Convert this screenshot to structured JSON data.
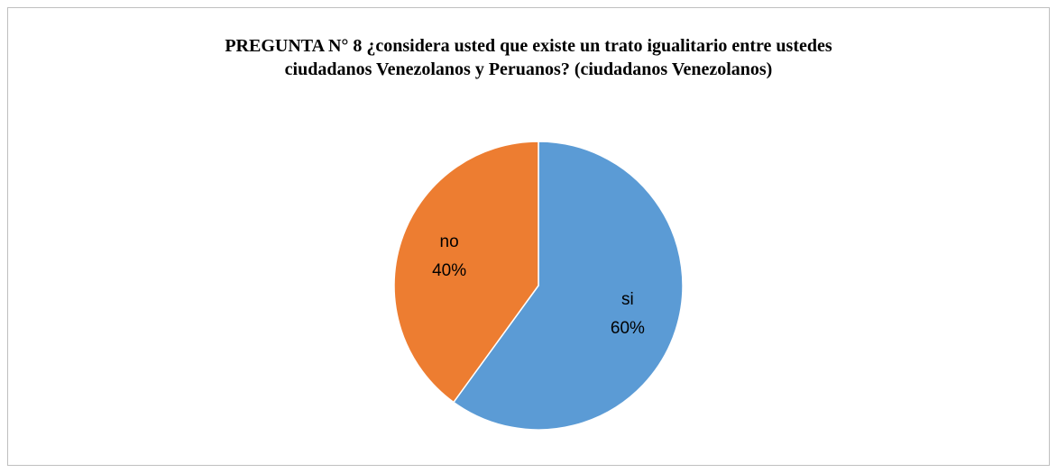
{
  "chart_data": {
    "type": "pie",
    "title": "PREGUNTA N° 8 ¿considera usted que existe un trato igualitario entre ustedes ciudadanos Venezolanos y Peruanos? (ciudadanos Venezolanos)",
    "categories": [
      "si",
      "no"
    ],
    "values": [
      60,
      40
    ],
    "value_labels": [
      "60%",
      "40%"
    ],
    "colors": [
      "#5b9bd5",
      "#ed7d31"
    ]
  }
}
